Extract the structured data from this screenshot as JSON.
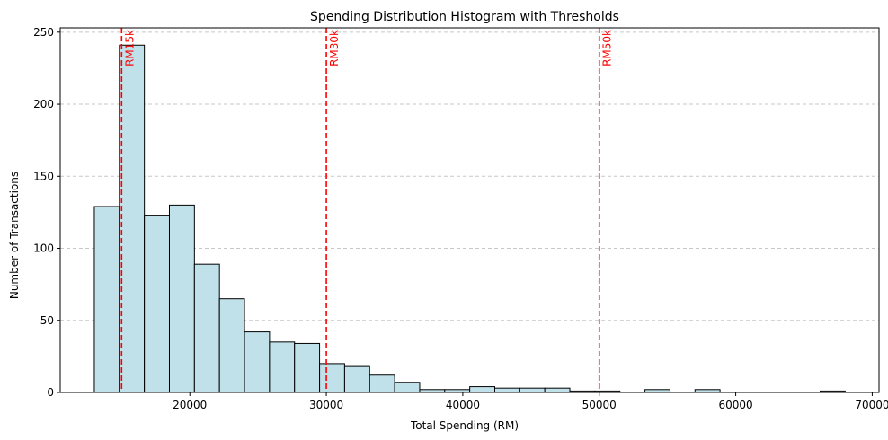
{
  "chart_data": {
    "type": "bar",
    "title": "Spending Distribution Histogram with Thresholds",
    "xlabel": "Total Spending (RM)",
    "ylabel": "Number of Transactions",
    "xlim": [
      10500,
      70500
    ],
    "ylim": [
      0,
      253
    ],
    "x_ticks": [
      20000,
      30000,
      40000,
      50000,
      60000,
      70000
    ],
    "y_ticks": [
      0,
      50,
      100,
      150,
      200,
      250
    ],
    "grid": "y-dashed",
    "bar_color": "#c0e0ea",
    "bar_edge": "#000000",
    "bins": [
      {
        "x0": 13000,
        "x1": 14834,
        "count": 129
      },
      {
        "x0": 14834,
        "x1": 16668,
        "count": 241
      },
      {
        "x0": 16668,
        "x1": 18502,
        "count": 123
      },
      {
        "x0": 18502,
        "x1": 20336,
        "count": 130
      },
      {
        "x0": 20336,
        "x1": 22170,
        "count": 89
      },
      {
        "x0": 22170,
        "x1": 24004,
        "count": 65
      },
      {
        "x0": 24004,
        "x1": 25838,
        "count": 42
      },
      {
        "x0": 25838,
        "x1": 27672,
        "count": 35
      },
      {
        "x0": 27672,
        "x1": 29506,
        "count": 34
      },
      {
        "x0": 29506,
        "x1": 31340,
        "count": 20
      },
      {
        "x0": 31340,
        "x1": 33174,
        "count": 18
      },
      {
        "x0": 33174,
        "x1": 35008,
        "count": 12
      },
      {
        "x0": 35008,
        "x1": 36842,
        "count": 7
      },
      {
        "x0": 36842,
        "x1": 38676,
        "count": 2
      },
      {
        "x0": 38676,
        "x1": 40510,
        "count": 2
      },
      {
        "x0": 40510,
        "x1": 42344,
        "count": 4
      },
      {
        "x0": 42344,
        "x1": 44178,
        "count": 3
      },
      {
        "x0": 44178,
        "x1": 46012,
        "count": 3
      },
      {
        "x0": 46012,
        "x1": 47846,
        "count": 3
      },
      {
        "x0": 47846,
        "x1": 49680,
        "count": 1
      },
      {
        "x0": 49680,
        "x1": 51514,
        "count": 1
      },
      {
        "x0": 51514,
        "x1": 53348,
        "count": 0
      },
      {
        "x0": 53348,
        "x1": 55182,
        "count": 2
      },
      {
        "x0": 55182,
        "x1": 57016,
        "count": 0
      },
      {
        "x0": 57016,
        "x1": 58850,
        "count": 2
      },
      {
        "x0": 58850,
        "x1": 60684,
        "count": 0
      },
      {
        "x0": 60684,
        "x1": 62518,
        "count": 0
      },
      {
        "x0": 62518,
        "x1": 64352,
        "count": 0
      },
      {
        "x0": 64352,
        "x1": 66186,
        "count": 0
      },
      {
        "x0": 66186,
        "x1": 68020,
        "count": 1
      }
    ],
    "thresholds": [
      {
        "value": 15000,
        "label": "RM15k",
        "color": "#ff0000"
      },
      {
        "value": 30000,
        "label": "RM30k",
        "color": "#ff0000"
      },
      {
        "value": 50000,
        "label": "RM50k",
        "color": "#ff0000"
      }
    ]
  }
}
